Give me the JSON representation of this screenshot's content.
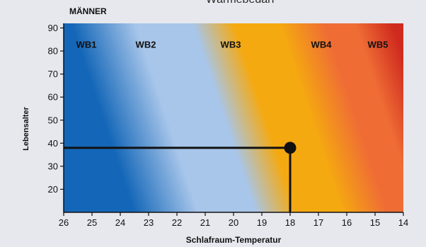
{
  "colors": {
    "background": "#e6e8ee",
    "wb1": "#1467b8",
    "wb2": "#a8c6ea",
    "wb3": "#f5a910",
    "wb4": "#ef6d35",
    "wb5": "#cf2a1e",
    "marker": "#111111"
  },
  "chart_data": {
    "type": "heatmap",
    "title": "MÄNNER",
    "caption_fragment": "Wärmebedarf",
    "xlabel": "Schlafraum-Temperatur",
    "ylabel": "Lebensalter",
    "x_reversed": true,
    "xlim": [
      26,
      14
    ],
    "ylim": [
      10,
      92
    ],
    "x_ticks": [
      26,
      25,
      24,
      23,
      22,
      21,
      20,
      19,
      18,
      17,
      16,
      15,
      14
    ],
    "y_ticks": [
      20,
      30,
      40,
      50,
      60,
      70,
      80,
      90
    ],
    "zones": [
      {
        "label": "WB1",
        "x": 25.2
      },
      {
        "label": "WB2",
        "x": 23.1
      },
      {
        "label": "WB3",
        "x": 20.1
      },
      {
        "label": "WB4",
        "x": 16.9
      },
      {
        "label": "WB5",
        "x": 14.9
      }
    ],
    "zone_labels_y": 83,
    "example_point": {
      "temperature": 18,
      "age": 38
    }
  }
}
